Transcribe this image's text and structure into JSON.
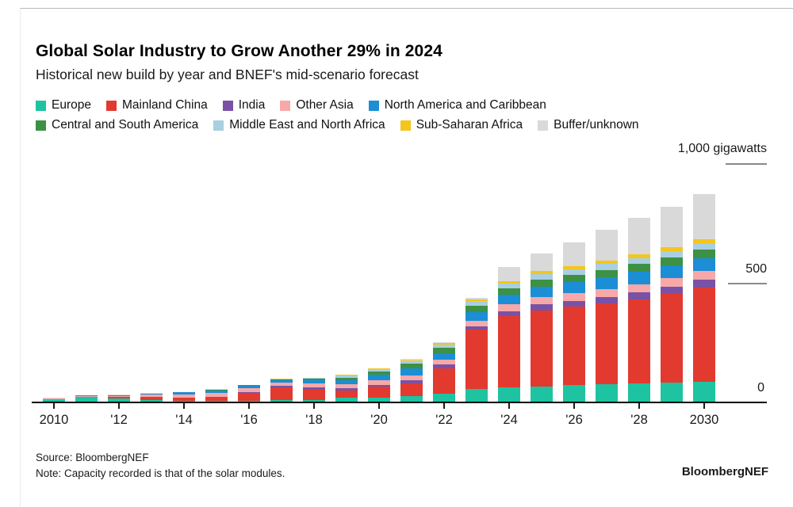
{
  "header": {
    "title": "Global Solar Industry to Grow Another 29% in 2024",
    "subtitle": "Historical new build by year and BNEF's mid-scenario forecast"
  },
  "chart_data": {
    "type": "bar",
    "stacked": true,
    "title": "Global Solar Industry to Grow Another 29% in 2024",
    "subtitle": "Historical new build by year and BNEF's mid-scenario forecast",
    "unit": "gigawatts",
    "ylim": [
      0,
      1000
    ],
    "grid": false,
    "legend_position": "top",
    "x": [
      2010,
      2011,
      2012,
      2013,
      2014,
      2015,
      2016,
      2017,
      2018,
      2019,
      2020,
      2021,
      2022,
      2023,
      2024,
      2025,
      2026,
      2027,
      2028,
      2029,
      2030
    ],
    "x_tick_labels": [
      "2010",
      "'12",
      "'14",
      "'16",
      "'18",
      "'20",
      "'22",
      "'24",
      "'26",
      "'28",
      "2030"
    ],
    "y_ticks": [
      {
        "label": "1,000 gigawatts",
        "value": 1000
      },
      {
        "label": "500",
        "value": 500
      },
      {
        "label": "0",
        "value": 0
      }
    ],
    "series": [
      {
        "name": "Europe",
        "color": "#1ec3a1",
        "values": [
          14,
          22,
          17,
          10,
          7,
          8,
          7,
          9,
          11,
          20,
          20,
          28,
          38,
          57,
          65,
          68,
          72,
          76,
          80,
          84,
          88
        ]
      },
      {
        "name": "Mainland China",
        "color": "#e23a2f",
        "values": [
          1,
          3,
          5,
          13,
          13,
          15,
          34,
          53,
          44,
          30,
          48,
          53,
          106,
          250,
          300,
          320,
          330,
          340,
          355,
          372,
          395
        ]
      },
      {
        "name": "India",
        "color": "#7a52a5",
        "values": [
          0,
          0,
          1,
          1,
          1,
          2,
          4,
          9,
          9,
          10,
          5,
          12,
          15,
          14,
          20,
          24,
          26,
          28,
          30,
          32,
          34
        ]
      },
      {
        "name": "Other Asia",
        "color": "#f7a8a8",
        "values": [
          2,
          3,
          4,
          9,
          14,
          16,
          14,
          13,
          15,
          18,
          20,
          22,
          22,
          24,
          28,
          30,
          31,
          32,
          33,
          34,
          35
        ]
      },
      {
        "name": "North America and Caribbean",
        "color": "#1b8ed6",
        "values": [
          1,
          2,
          3,
          5,
          7,
          9,
          12,
          11,
          13,
          15,
          23,
          29,
          26,
          34,
          40,
          46,
          48,
          50,
          52,
          54,
          56
        ]
      },
      {
        "name": "Central and South America",
        "color": "#3d9144",
        "values": [
          0,
          0,
          0,
          0,
          1,
          2,
          2,
          2,
          7,
          12,
          14,
          18,
          24,
          28,
          28,
          30,
          31,
          32,
          33,
          34,
          35
        ]
      },
      {
        "name": "Middle East and North Africa",
        "color": "#a9cfe0",
        "values": [
          0,
          0,
          0,
          0,
          0,
          1,
          1,
          1,
          3,
          8,
          10,
          12,
          14,
          20,
          20,
          22,
          23,
          24,
          25,
          26,
          27
        ]
      },
      {
        "name": "Sub-Saharan Africa",
        "color": "#f4c51d",
        "values": [
          0,
          0,
          0,
          0,
          0,
          1,
          1,
          1,
          1,
          3,
          3,
          4,
          5,
          8,
          10,
          12,
          13,
          14,
          15,
          16,
          17
        ]
      },
      {
        "name": "Buffer/unknown",
        "color": "#d9d9d9",
        "values": [
          1,
          0,
          3,
          2,
          1,
          2,
          0,
          0,
          1,
          2,
          2,
          4,
          2,
          5,
          60,
          75,
          100,
          130,
          155,
          172,
          190
        ]
      }
    ]
  },
  "footer": {
    "source": "Source: BloombergNEF",
    "note": "Note: Capacity recorded is that of the solar modules.",
    "brand": "BloombergNEF"
  }
}
